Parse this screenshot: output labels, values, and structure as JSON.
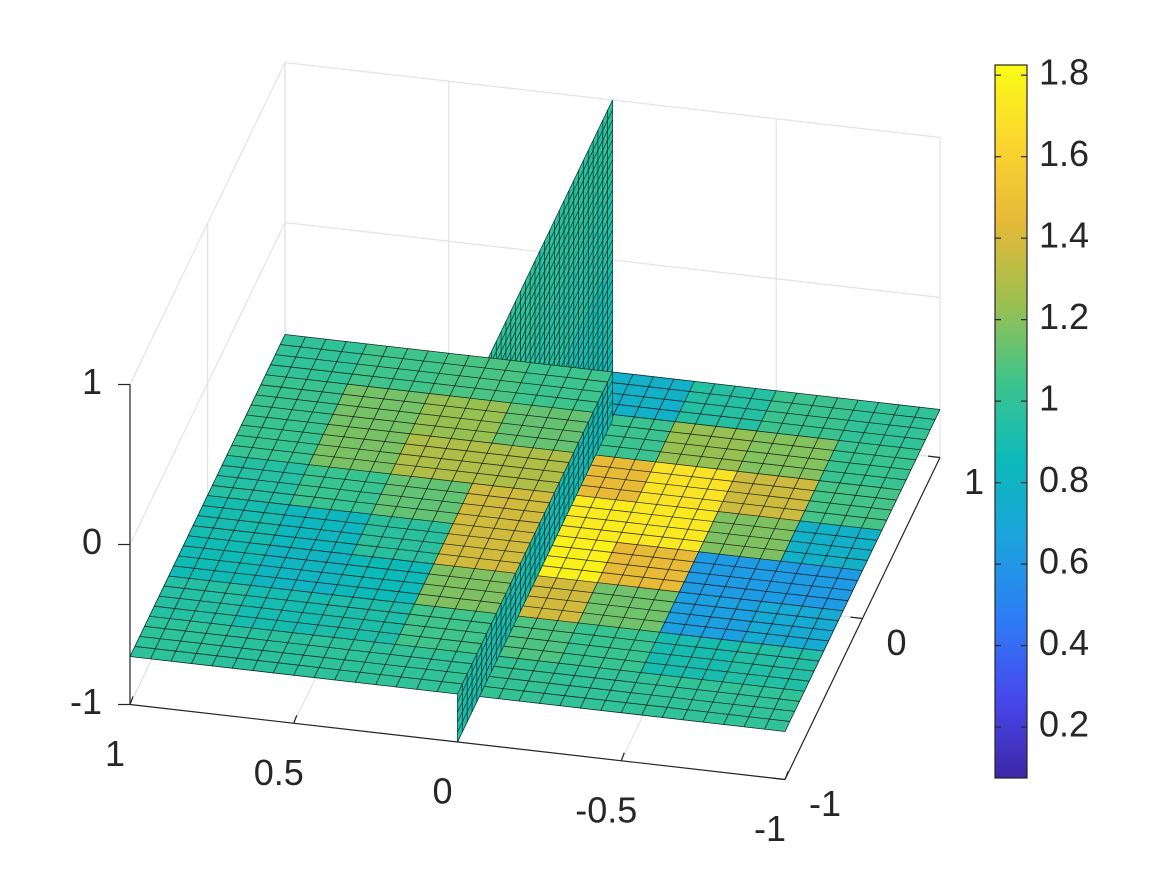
{
  "chart_data": {
    "type": "slice",
    "xlim": [
      -1,
      1
    ],
    "ylim": [
      -1,
      1
    ],
    "zlim": [
      -1,
      1
    ],
    "xticks": [
      -1,
      -0.5,
      0,
      0.5,
      1
    ],
    "yticks": [
      -1,
      0,
      1
    ],
    "zticks": [
      -1,
      0,
      1
    ],
    "grid": true,
    "colormap": [
      "#3e26a8",
      "#4748ec",
      "#2d7cf6",
      "#1ca2de",
      "#0cbab9",
      "#3ec48c",
      "#9dc04f",
      "#e5b938",
      "#fbd52f",
      "#f9fb15"
    ],
    "clim": [
      0.075,
      1.825
    ],
    "colorbar_ticks": [
      0.2,
      0.4,
      0.6,
      0.8,
      1,
      1.2,
      1.4,
      1.6,
      1.8
    ],
    "slices": [
      {
        "orientation": "z",
        "at": -0.7,
        "x": [
          0.875,
          0.625,
          0.375,
          0.125,
          -0.125,
          -0.375,
          -0.625,
          -0.875
        ],
        "y": [
          -0.875,
          -0.625,
          -0.375,
          -0.125,
          0.125,
          0.375,
          0.625,
          0.875
        ],
        "values": [
          [
            0.98,
            0.95,
            0.87,
            0.89,
            0.95,
            1.02,
            1.03,
            1.0
          ],
          [
            0.97,
            0.89,
            0.81,
            0.83,
            1.02,
            1.17,
            1.16,
            1.05
          ],
          [
            0.98,
            0.92,
            0.85,
            0.97,
            1.12,
            1.29,
            1.23,
            1.07
          ],
          [
            1.0,
            1.05,
            1.18,
            1.38,
            1.38,
            1.29,
            1.13,
            1.04
          ],
          [
            1.01,
            1.08,
            1.38,
            1.77,
            1.74,
            1.45,
            1.03,
            0.78
          ],
          [
            1.0,
            1.02,
            1.15,
            1.45,
            1.73,
            1.7,
            1.23,
            0.95
          ],
          [
            1.0,
            0.9,
            0.65,
            0.62,
            1.18,
            1.37,
            1.19,
            1.03
          ],
          [
            1.0,
            0.94,
            0.72,
            0.62,
            0.78,
            1.06,
            1.02,
            1.0
          ]
        ]
      },
      {
        "orientation": "x",
        "at": 0,
        "z": [
          0.75,
          0.25,
          -0.25,
          -0.75
        ],
        "y": [
          -0.75,
          -0.25,
          0.25,
          0.75
        ],
        "values": [
          [
            0.98,
            0.98,
            0.97,
            0.97
          ],
          [
            0.97,
            0.96,
            0.95,
            0.95
          ],
          [
            0.95,
            0.94,
            0.92,
            0.9
          ],
          [
            0.92,
            0.9,
            0.88,
            0.87
          ]
        ]
      }
    ]
  }
}
